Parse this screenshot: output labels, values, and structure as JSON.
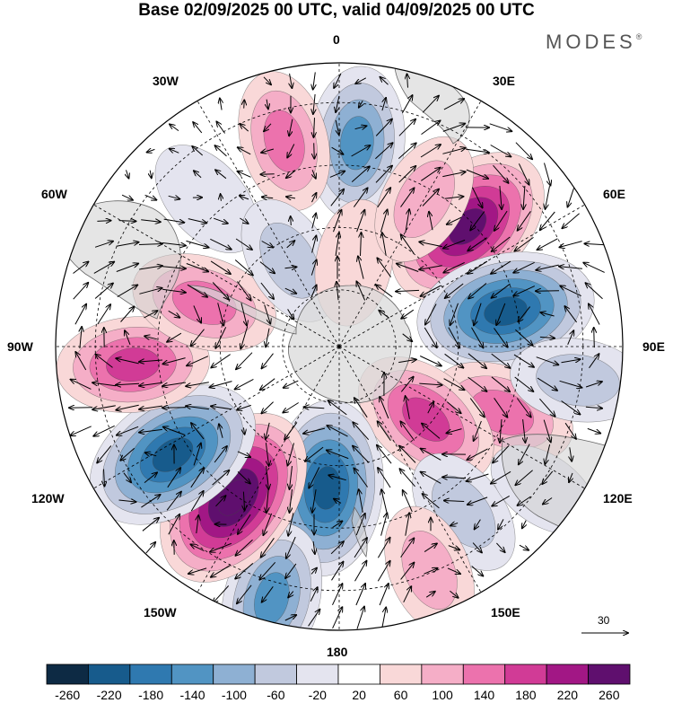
{
  "title": "Base 02/09/2025 00 UTC, valid 04/09/2025 00 UTC",
  "brand": "MODES",
  "brand_mark": "®",
  "longitude_labels": {
    "lon_0": "0",
    "lon_30e": "30E",
    "lon_60e": "60E",
    "lon_90e": "90E",
    "lon_120e": "120E",
    "lon_150e": "150E",
    "lon_180": "180",
    "lon_150w": "150W",
    "lon_120w": "120W",
    "lon_90w": "90W",
    "lon_60w": "60W",
    "lon_30w": "30W"
  },
  "reference_vector": {
    "value": "30"
  },
  "colorbar": {
    "labels": [
      "-260",
      "-220",
      "-180",
      "-140",
      "-100",
      "-60",
      "-20",
      "20",
      "60",
      "100",
      "140",
      "180",
      "220",
      "260"
    ],
    "colors": [
      "#0d2a44",
      "#175b8c",
      "#2f79b0",
      "#5194c3",
      "#8eb0d3",
      "#c1c9de",
      "#e4e4ef",
      "#ffffff",
      "#f9d8d8",
      "#f5aec7",
      "#ec72ad",
      "#d13b96",
      "#a21785",
      "#5f0f6e"
    ]
  },
  "anomaly_centers": [
    {
      "lon": 5,
      "r": 0.72,
      "value": -160
    },
    {
      "lon": 47,
      "r": 0.62,
      "value": 250
    },
    {
      "lon": 78,
      "r": 0.6,
      "value": -250
    },
    {
      "lon": 112,
      "r": 0.62,
      "value": 140
    },
    {
      "lon": 130,
      "r": 0.4,
      "value": 170
    },
    {
      "lon": 143,
      "r": 0.73,
      "value": -90
    },
    {
      "lon": 158,
      "r": 0.85,
      "value": 90
    },
    {
      "lon": -175,
      "r": 0.5,
      "value": -240
    },
    {
      "lon": -165,
      "r": 0.92,
      "value": -160
    },
    {
      "lon": -145,
      "r": 0.65,
      "value": 280
    },
    {
      "lon": -123,
      "r": 0.7,
      "value": -260
    },
    {
      "lon": -95,
      "r": 0.73,
      "value": 160
    },
    {
      "lon": -15,
      "r": 0.75,
      "value": 120
    },
    {
      "lon": -42,
      "r": 0.7,
      "value": -70
    },
    {
      "lon": -72,
      "r": 0.5,
      "value": 140
    },
    {
      "lon": -30,
      "r": 0.35,
      "value": -90
    },
    {
      "lon": 10,
      "r": 0.3,
      "value": 70
    },
    {
      "lon": 30,
      "r": 0.6,
      "value": 100
    },
    {
      "lon": 98,
      "r": 0.85,
      "value": -100
    },
    {
      "lon": 125,
      "r": 0.88,
      "value": -40
    }
  ]
}
